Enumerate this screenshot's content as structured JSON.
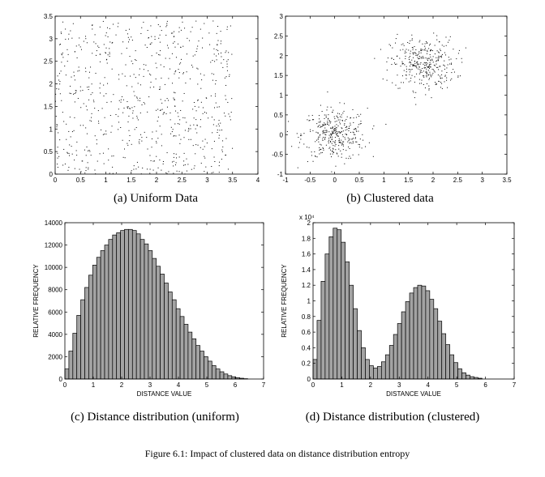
{
  "figure": {
    "caption": "Figure 6.1: Impact of clustered data on distance distribution entropy"
  },
  "chart_data": [
    {
      "type": "scatter",
      "caption": "(a) Uniform Data",
      "xlim": [
        0,
        4
      ],
      "ylim": [
        0,
        3.5
      ],
      "xticks": [
        "0",
        "0.5",
        "1",
        "1.5",
        "2",
        "2.5",
        "3",
        "3.5",
        "4"
      ],
      "yticks": [
        "0",
        "0.5",
        "1",
        "1.5",
        "2",
        "2.5",
        "3",
        "3.5"
      ],
      "distribution": {
        "kind": "uniform",
        "x_range": [
          0,
          3.5
        ],
        "y_range": [
          0,
          3.4
        ],
        "count": 700
      }
    },
    {
      "type": "scatter",
      "caption": "(b) Clustered data",
      "xlim": [
        -1,
        3.5
      ],
      "ylim": [
        -1,
        3
      ],
      "xticks": [
        "-1",
        "-0.5",
        "0",
        "0.5",
        "1",
        "1.5",
        "2",
        "2.5",
        "3",
        "3.5"
      ],
      "yticks": [
        "-1",
        "-0.5",
        "0",
        "0.5",
        "1",
        "1.5",
        "2",
        "2.5",
        "3"
      ],
      "clusters": [
        {
          "center": [
            0,
            0
          ],
          "spread": 0.33,
          "count": 350
        },
        {
          "center": [
            1.8,
            1.8
          ],
          "spread": 0.33,
          "count": 350
        }
      ]
    },
    {
      "type": "bar",
      "caption": "(c) Distance distribution (uniform)",
      "xlabel": "DISTANCE VALUE",
      "ylabel": "RELATIVE FREQUENCY",
      "xlim": [
        0,
        7
      ],
      "ylim": [
        0,
        14000
      ],
      "xticks": [
        "0",
        "1",
        "2",
        "3",
        "4",
        "5",
        "6",
        "7"
      ],
      "yticks": [
        "0",
        "2000",
        "4000",
        "6000",
        "8000",
        "10000",
        "12000",
        "14000"
      ],
      "bin_width": 0.14,
      "bin_start": 0,
      "values": [
        900,
        2500,
        4100,
        5700,
        7100,
        8200,
        9300,
        10200,
        10900,
        11500,
        12000,
        12500,
        12900,
        13100,
        13300,
        13400,
        13400,
        13300,
        13000,
        12500,
        12100,
        11500,
        10800,
        10100,
        9400,
        8600,
        7800,
        7100,
        6300,
        5600,
        4900,
        4200,
        3600,
        3000,
        2500,
        2000,
        1600,
        1200,
        900,
        650,
        450,
        300,
        200,
        120,
        70,
        30
      ]
    },
    {
      "type": "bar",
      "caption": "(d) Distance distribution (clustered)",
      "xlabel": "DISTANCE VALUE",
      "ylabel": "RELATIVE FREQUENCY",
      "y_multiplier": "x 10⁴",
      "xlim": [
        0,
        7
      ],
      "ylim": [
        0,
        2
      ],
      "xticks": [
        "0",
        "1",
        "2",
        "3",
        "4",
        "5",
        "6",
        "7"
      ],
      "yticks": [
        "0",
        "0.2",
        "0.4",
        "0.6",
        "0.8",
        "1",
        "1.2",
        "1.4",
        "1.6",
        "1.8",
        "2"
      ],
      "bin_width": 0.14,
      "bin_start": 0,
      "values": [
        0.25,
        0.75,
        1.25,
        1.6,
        1.82,
        1.93,
        1.91,
        1.75,
        1.5,
        1.2,
        0.9,
        0.62,
        0.4,
        0.25,
        0.17,
        0.14,
        0.16,
        0.22,
        0.31,
        0.43,
        0.57,
        0.71,
        0.86,
        0.99,
        1.1,
        1.17,
        1.2,
        1.19,
        1.13,
        1.02,
        0.9,
        0.74,
        0.58,
        0.44,
        0.31,
        0.21,
        0.13,
        0.08,
        0.05,
        0.03,
        0.02,
        0.01
      ]
    }
  ]
}
